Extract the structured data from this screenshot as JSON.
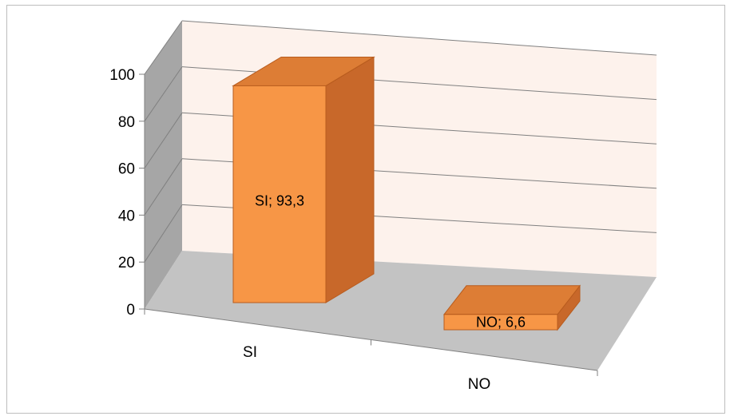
{
  "chart_data": {
    "type": "bar",
    "style": "3d-column",
    "title": "",
    "xlabel": "",
    "ylabel": "",
    "categories": [
      "SI",
      "NO"
    ],
    "values": [
      93.3,
      6.6
    ],
    "data_labels": [
      "SI; 93,3",
      "NO; 6,6"
    ],
    "ylim": [
      0,
      100
    ],
    "yticks": [
      0,
      20,
      40,
      60,
      80,
      100
    ],
    "ytick_labels": [
      "0",
      "20",
      "40",
      "60",
      "80",
      "100"
    ],
    "grid": true,
    "legend": "none",
    "colors": {
      "bar_front": "#F79646",
      "bar_side": "#C8682A",
      "bar_top": "#DD7D35",
      "bar_outline": "#B85C1E",
      "back_wall": "#FDF2EC",
      "side_wall": "#A6A6A6",
      "floor": "#C3C3C3",
      "gridline": "#808080"
    }
  }
}
